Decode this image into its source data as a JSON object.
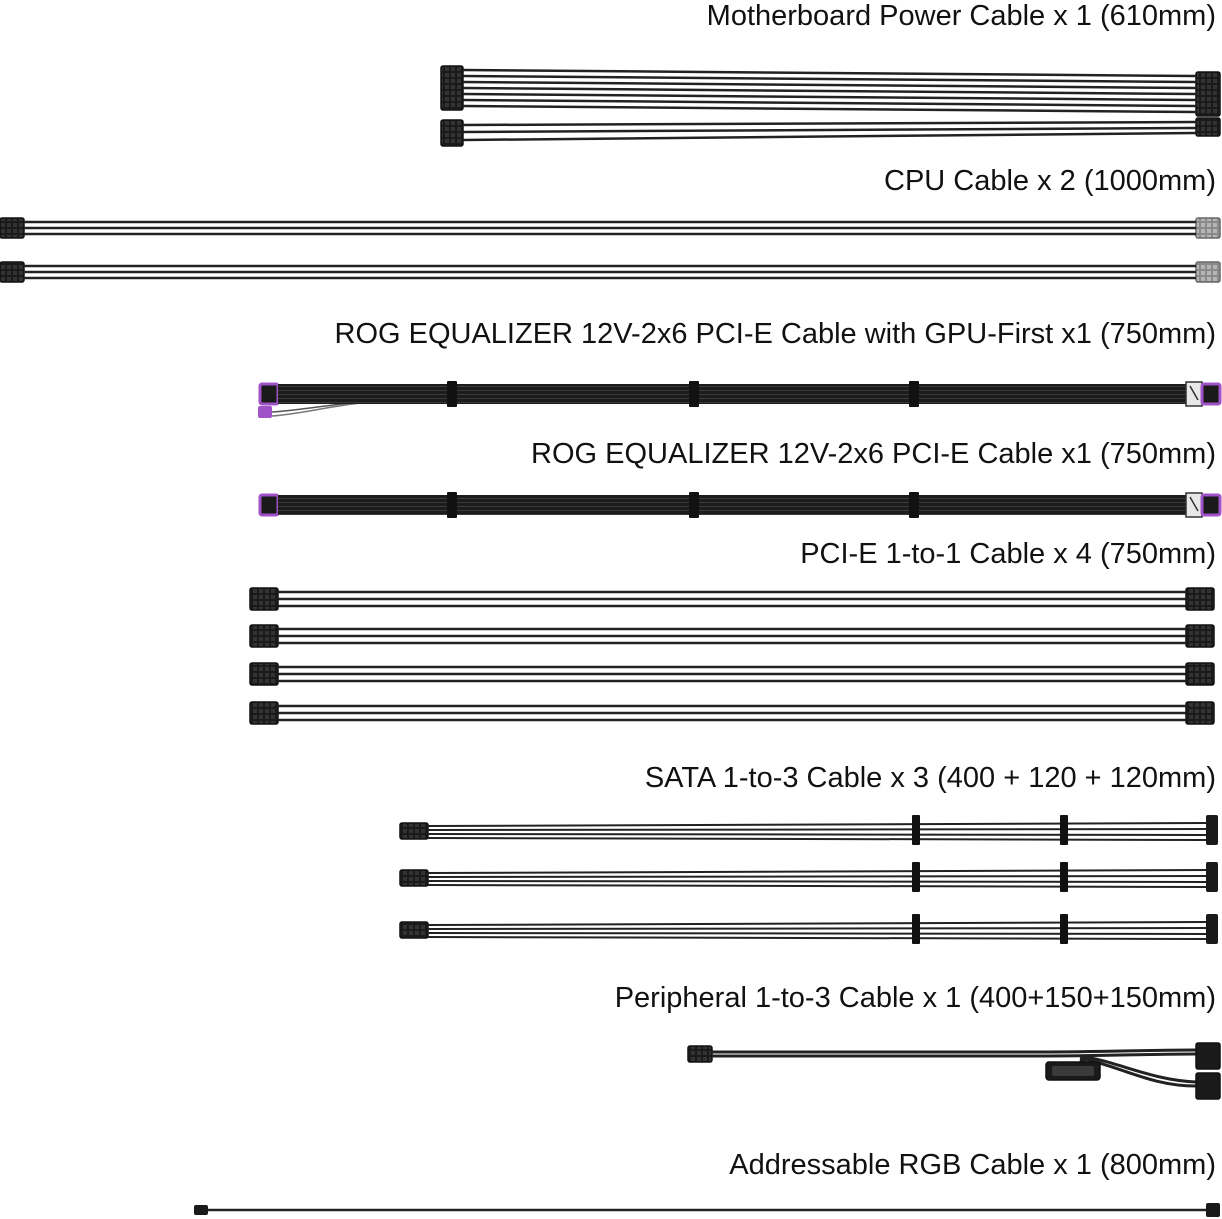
{
  "cables": [
    {
      "id": "motherboard",
      "label": "Motherboard Power  Cable x 1 (610mm)"
    },
    {
      "id": "cpu",
      "label": "CPU Cable x 2 (1000mm)"
    },
    {
      "id": "rog-gpu-first",
      "label": "ROG EQUALIZER 12V-2x6 PCI-E Cable with GPU-First x1 (750mm)"
    },
    {
      "id": "rog-12v",
      "label": "ROG EQUALIZER 12V-2x6 PCI-E Cable x1 (750mm)"
    },
    {
      "id": "pcie",
      "label": "PCI-E 1-to-1 Cable x 4 (750mm)"
    },
    {
      "id": "sata",
      "label": "SATA 1-to-3 Cable x 3 (400 + 120 + 120mm)"
    },
    {
      "id": "peripheral",
      "label": "Peripheral 1-to-3 Cable x 1 (400+150+150mm)"
    },
    {
      "id": "argb",
      "label": "Addressable RGB Cable x 1 (800mm)"
    }
  ],
  "colors": {
    "text": "#111111",
    "wire": "#2a2a2a",
    "connector": "#1a1a1a",
    "rog_accent": "#a052c8",
    "gray_connector": "#9a9a9a"
  }
}
